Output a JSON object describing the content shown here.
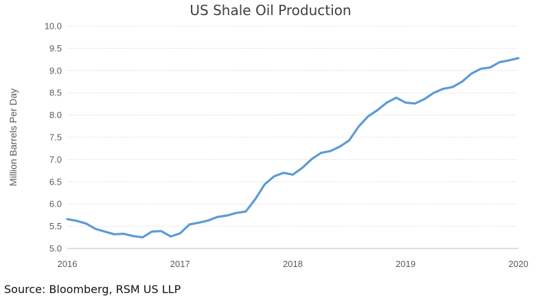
{
  "chart_data": {
    "type": "line",
    "title": "US Shale Oil Production",
    "xlabel": "",
    "ylabel": "Million Barrels Per Day",
    "ylim": [
      5.0,
      10.0
    ],
    "xlim": [
      2016,
      2020
    ],
    "yticks": [
      "5.0",
      "5.5",
      "6.0",
      "6.5",
      "7.0",
      "7.5",
      "8.0",
      "8.5",
      "9.0",
      "9.5",
      "10.0"
    ],
    "xticks": [
      "2016",
      "2017",
      "2018",
      "2019",
      "2020"
    ],
    "grid": true,
    "series": [
      {
        "color": "#5b9bd5",
        "x": [
          2016.0,
          2016.083,
          2016.167,
          2016.25,
          2016.333,
          2016.417,
          2016.5,
          2016.583,
          2016.667,
          2016.75,
          2016.833,
          2016.917,
          2017.0,
          2017.083,
          2017.167,
          2017.25,
          2017.333,
          2017.417,
          2017.5,
          2017.583,
          2017.667,
          2017.75,
          2017.833,
          2017.917,
          2018.0,
          2018.083,
          2018.167,
          2018.25,
          2018.333,
          2018.417,
          2018.5,
          2018.583,
          2018.667,
          2018.75,
          2018.833,
          2018.917,
          2019.0,
          2019.083,
          2019.167,
          2019.25,
          2019.333,
          2019.417,
          2019.5,
          2019.583,
          2019.667,
          2019.75,
          2019.833,
          2019.917,
          2020.0
        ],
        "values": [
          5.66,
          5.62,
          5.56,
          5.44,
          5.38,
          5.32,
          5.33,
          5.28,
          5.25,
          5.38,
          5.39,
          5.27,
          5.34,
          5.54,
          5.58,
          5.63,
          5.71,
          5.74,
          5.8,
          5.83,
          6.11,
          6.44,
          6.62,
          6.7,
          6.66,
          6.81,
          7.01,
          7.15,
          7.19,
          7.29,
          7.43,
          7.74,
          7.97,
          8.11,
          8.28,
          8.39,
          8.28,
          8.26,
          8.36,
          8.5,
          8.59,
          8.63,
          8.75,
          8.93,
          9.04,
          9.07,
          9.19,
          9.23,
          9.28
        ]
      }
    ]
  },
  "source": "Source: Bloomberg, RSM US LLP"
}
